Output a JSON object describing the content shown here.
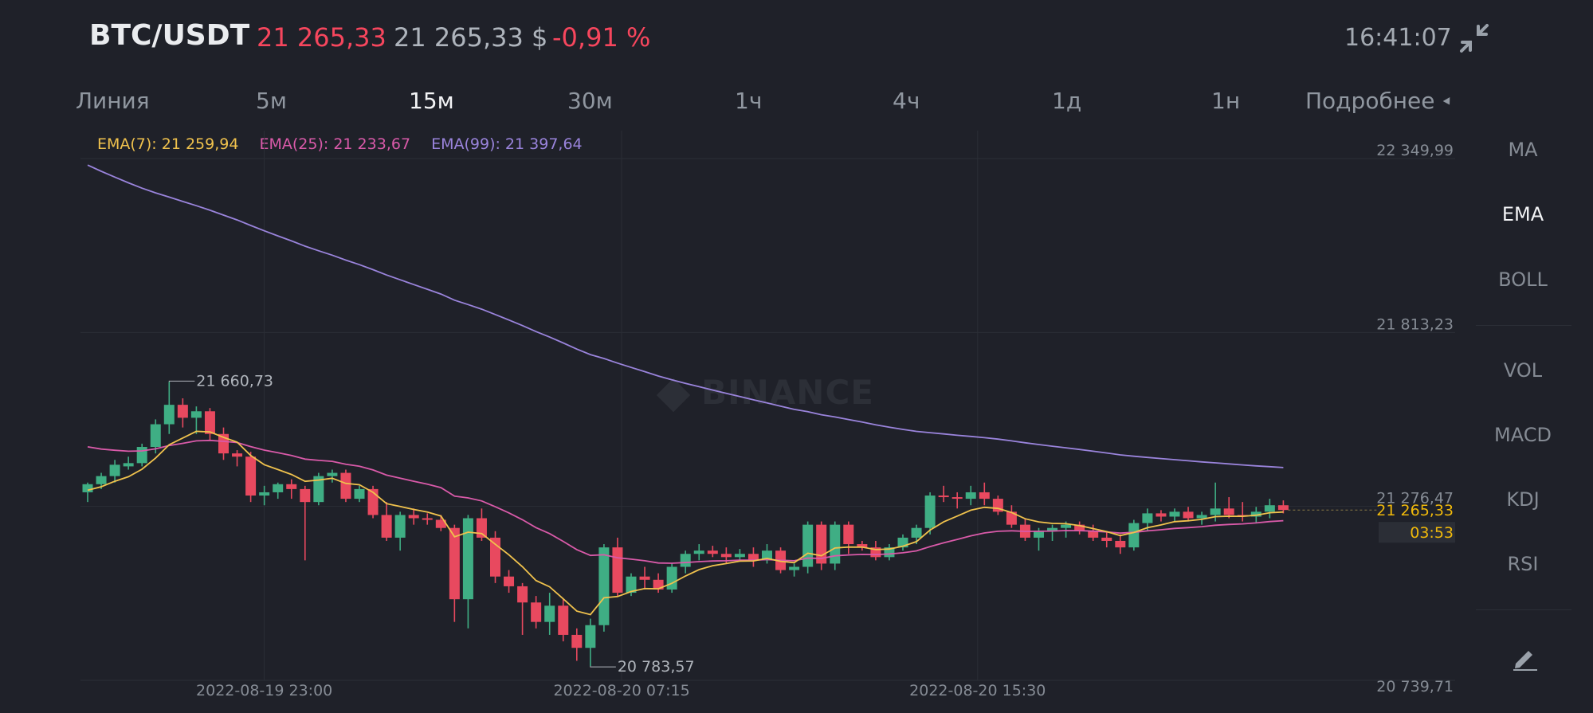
{
  "header": {
    "pair": "BTC/USDT",
    "price": "21 265,33",
    "price_usd": "21 265,33 $",
    "change": "-0,91 %",
    "time": "16:41:07"
  },
  "intervals": [
    "Линия",
    "5м",
    "15м",
    "30м",
    "1ч",
    "4ч",
    "1д",
    "1н"
  ],
  "intervals_active": "15м",
  "more_label": "Подробнее",
  "legend": {
    "ema7": "EMA(7): 21 259,94",
    "ema25": "EMA(25): 21 233,67",
    "ema99": "EMA(99): 21 397,64"
  },
  "watermark": "BINANCE",
  "indicators_main": [
    "MA",
    "EMA",
    "BOLL"
  ],
  "indicators_sub": [
    "VOL",
    "MACD",
    "KDJ",
    "RSI"
  ],
  "indicators_active": "EMA",
  "colors": {
    "up": "#3fae84",
    "down": "#e8495f",
    "ema7": "#f0c24d",
    "ema25": "#d95aa9",
    "ema99": "#9a84dc",
    "background": "#1f2129"
  },
  "chart_data": {
    "type": "candlestick",
    "price_axis_labels": [
      "22 349,99",
      "21 813,23",
      "21 276,47",
      "20 739,71"
    ],
    "y_range": [
      20739.71,
      22349.99
    ],
    "x_tick_labels": [
      "2022-08-19 23:00",
      "2022-08-20 07:15",
      "2022-08-20 15:30"
    ],
    "high_annotation": "21 660,73",
    "low_annotation": "20 783,57",
    "last_price_label": "21 265,33",
    "countdown_label": "03:53",
    "candles": [
      [
        21320,
        21350,
        21290,
        21345
      ],
      [
        21345,
        21380,
        21330,
        21370
      ],
      [
        21370,
        21420,
        21350,
        21405
      ],
      [
        21400,
        21430,
        21390,
        21410
      ],
      [
        21410,
        21470,
        21400,
        21460
      ],
      [
        21460,
        21545,
        21440,
        21530
      ],
      [
        21530,
        21660.73,
        21500,
        21590
      ],
      [
        21590,
        21610,
        21520,
        21550
      ],
      [
        21550,
        21585,
        21500,
        21570
      ],
      [
        21570,
        21580,
        21480,
        21500
      ],
      [
        21500,
        21520,
        21420,
        21440
      ],
      [
        21440,
        21450,
        21400,
        21430
      ],
      [
        21430,
        21445,
        21290,
        21310
      ],
      [
        21310,
        21340,
        21280,
        21320
      ],
      [
        21320,
        21350,
        21300,
        21345
      ],
      [
        21345,
        21360,
        21300,
        21330
      ],
      [
        21330,
        21340,
        21110,
        21290
      ],
      [
        21290,
        21380,
        21280,
        21370
      ],
      [
        21370,
        21390,
        21350,
        21380
      ],
      [
        21380,
        21390,
        21290,
        21300
      ],
      [
        21300,
        21340,
        21290,
        21330
      ],
      [
        21330,
        21340,
        21240,
        21250
      ],
      [
        21250,
        21290,
        21170,
        21180
      ],
      [
        21180,
        21260,
        21140,
        21250
      ],
      [
        21250,
        21270,
        21220,
        21240
      ],
      [
        21240,
        21255,
        21220,
        21235
      ],
      [
        21235,
        21250,
        21200,
        21210
      ],
      [
        21210,
        21220,
        20920,
        20990
      ],
      [
        20990,
        21250,
        20900,
        21240
      ],
      [
        21240,
        21270,
        21170,
        21180
      ],
      [
        21180,
        21200,
        21040,
        21060
      ],
      [
        21060,
        21080,
        21010,
        21030
      ],
      [
        21030,
        21040,
        20880,
        20980
      ],
      [
        20980,
        21000,
        20900,
        20920
      ],
      [
        20920,
        21010,
        20880,
        20970
      ],
      [
        20970,
        20990,
        20860,
        20880
      ],
      [
        20880,
        20900,
        20800,
        20840
      ],
      [
        20840,
        20930,
        20783.57,
        20910
      ],
      [
        20910,
        21160,
        20890,
        21150
      ],
      [
        21150,
        21180,
        21000,
        21010
      ],
      [
        21010,
        21070,
        21000,
        21060
      ],
      [
        21060,
        21090,
        21020,
        21050
      ],
      [
        21050,
        21070,
        21010,
        21020
      ],
      [
        21020,
        21100,
        21010,
        21090
      ],
      [
        21090,
        21140,
        21070,
        21130
      ],
      [
        21130,
        21160,
        21110,
        21140
      ],
      [
        21140,
        21155,
        21120,
        21130
      ],
      [
        21130,
        21150,
        21100,
        21120
      ],
      [
        21120,
        21145,
        21110,
        21130
      ],
      [
        21130,
        21150,
        21090,
        21110
      ],
      [
        21110,
        21160,
        21100,
        21140
      ],
      [
        21140,
        21150,
        21070,
        21080
      ],
      [
        21080,
        21100,
        21060,
        21090
      ],
      [
        21090,
        21230,
        21070,
        21220
      ],
      [
        21220,
        21230,
        21080,
        21100
      ],
      [
        21100,
        21230,
        21080,
        21220
      ],
      [
        21220,
        21230,
        21130,
        21160
      ],
      [
        21160,
        21170,
        21140,
        21150
      ],
      [
        21150,
        21170,
        21110,
        21120
      ],
      [
        21120,
        21160,
        21110,
        21150
      ],
      [
        21150,
        21190,
        21140,
        21180
      ],
      [
        21180,
        21220,
        21160,
        21210
      ],
      [
        21210,
        21320,
        21190,
        21310
      ],
      [
        21310,
        21340,
        21290,
        21305
      ],
      [
        21305,
        21320,
        21270,
        21300
      ],
      [
        21300,
        21340,
        21280,
        21320
      ],
      [
        21320,
        21350,
        21280,
        21300
      ],
      [
        21300,
        21310,
        21250,
        21260
      ],
      [
        21260,
        21280,
        21210,
        21220
      ],
      [
        21220,
        21240,
        21170,
        21180
      ],
      [
        21180,
        21210,
        21140,
        21200
      ],
      [
        21200,
        21220,
        21170,
        21210
      ],
      [
        21210,
        21230,
        21180,
        21220
      ],
      [
        21220,
        21230,
        21190,
        21200
      ],
      [
        21200,
        21220,
        21170,
        21180
      ],
      [
        21180,
        21200,
        21150,
        21170
      ],
      [
        21170,
        21190,
        21130,
        21150
      ],
      [
        21150,
        21235,
        21140,
        21225
      ],
      [
        21225,
        21270,
        21200,
        21255
      ],
      [
        21255,
        21265,
        21230,
        21245
      ],
      [
        21245,
        21270,
        21230,
        21260
      ],
      [
        21260,
        21275,
        21230,
        21240
      ],
      [
        21240,
        21260,
        21220,
        21250
      ],
      [
        21250,
        21350,
        21230,
        21270
      ],
      [
        21270,
        21305,
        21240,
        21250
      ],
      [
        21250,
        21290,
        21230,
        21245
      ],
      [
        21245,
        21275,
        21225,
        21260
      ],
      [
        21260,
        21300,
        21240,
        21280
      ],
      [
        21280,
        21295,
        21255,
        21265.33
      ]
    ]
  }
}
